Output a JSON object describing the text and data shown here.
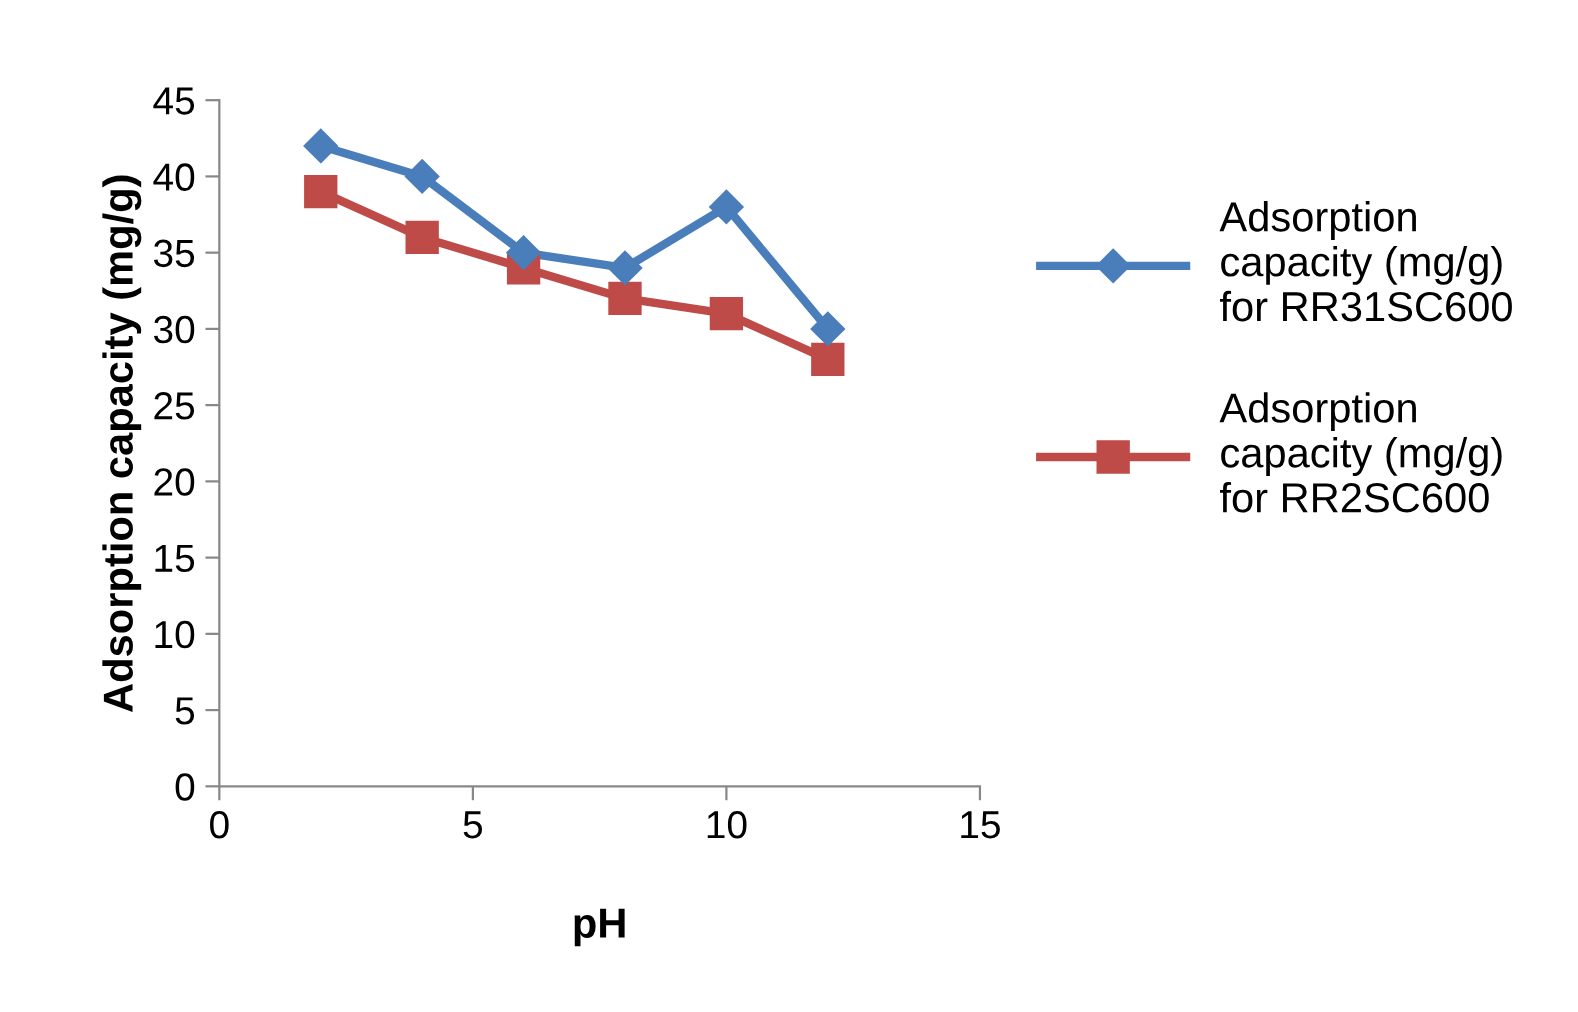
{
  "chart_data": {
    "type": "line",
    "xlabel": "pH",
    "ylabel": "Adsorption capacity (mg/g)",
    "x": [
      2,
      4,
      6,
      8,
      10,
      12
    ],
    "series": [
      {
        "name": "Adsorption\ncapacity (mg/g)\nfor RR31SC600",
        "color": "#4a7ebb",
        "marker": "diamond",
        "values": [
          42,
          40,
          35,
          34,
          38,
          30
        ]
      },
      {
        "name": "Adsorption\ncapacity (mg/g)\nfor RR2SC600",
        "color": "#be4b48",
        "marker": "square",
        "values": [
          39,
          36,
          34,
          32,
          31,
          28
        ]
      }
    ],
    "xlim": [
      0,
      15
    ],
    "xticks": [
      0,
      5,
      10,
      15
    ],
    "ylim": [
      0,
      45
    ],
    "yticks": [
      0,
      5,
      10,
      15,
      20,
      25,
      30,
      35,
      40,
      45
    ],
    "grid": false,
    "legend": "right",
    "line_style": "solid"
  }
}
